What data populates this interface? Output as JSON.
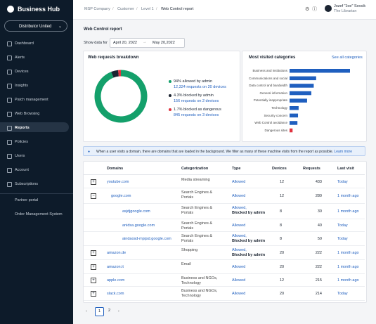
{
  "sidebar": {
    "logo": "Business Hub",
    "account": "Distributor United",
    "menu": [
      "Dashboard",
      "Alerts",
      "Devices",
      "Insights",
      "Patch management",
      "Web Browsing",
      "Reports",
      "Policies",
      "Users",
      "Account",
      "Subscriptions"
    ],
    "links": [
      "Partner portal",
      "Order Management System"
    ]
  },
  "header": {
    "breadcrumb": [
      "MSP Company",
      "Customer",
      "Level 1",
      "Web Control report"
    ],
    "user_name": "Jozef \"Joe\" Sovcik",
    "user_role": "The Librarian"
  },
  "page": {
    "title": "Web Control report",
    "show_data_for": "Show data for",
    "date_from": "April 20, 2022",
    "date_to": "May 20,2022"
  },
  "breakdown": {
    "title": "Web requests breakdown",
    "items": [
      {
        "value": 94,
        "label": "94% allowed by admin",
        "detail": "12,324 requests on 20 devices",
        "color": "#14a06b"
      },
      {
        "value": 4.3,
        "label": "4.3% blocked by admin",
        "detail": "156 requests on 2 devices",
        "color": "#1b2431"
      },
      {
        "value": 1.7,
        "label": "1.7% blocked as dangerous",
        "detail": "845 requests on 3 devices",
        "color": "#e0333f"
      }
    ]
  },
  "categories": {
    "title": "Most visited categories",
    "link": "See all categories",
    "items": [
      {
        "name": "Business and institutions",
        "value": 100,
        "color": "#1f5fbf"
      },
      {
        "name": "Communications and social",
        "value": 44,
        "color": "#1f5fbf"
      },
      {
        "name": "Data control and bandwidth",
        "value": 40,
        "color": "#1f5fbf"
      },
      {
        "name": "General information",
        "value": 36,
        "color": "#1f5fbf"
      },
      {
        "name": "Potentially inappropriate",
        "value": 29,
        "color": "#1f5fbf"
      },
      {
        "name": "Technology",
        "value": 15,
        "color": "#1f5fbf"
      },
      {
        "name": "Security concern",
        "value": 14,
        "color": "#1f5fbf"
      },
      {
        "name": "Web Control avoidance",
        "value": 13,
        "color": "#1f5fbf"
      },
      {
        "name": "Dangerous sites",
        "value": 5,
        "color": "#e0333f"
      }
    ]
  },
  "info": {
    "text": "When a user visits a domain, there are domains that are loaded in the background. We filter as many of these machine visits from the report as possible.",
    "link": "Learn more"
  },
  "table": {
    "columns": [
      "Domains",
      "Categorization",
      "Type",
      "Devices",
      "Requests",
      "Last visit"
    ],
    "rows": [
      [
        "youtube.com",
        "Media streaming",
        [
          "Allowed"
        ],
        "12",
        "433",
        "Today"
      ],
      [
        "google.com",
        "Search Engines & Portals",
        [
          "Allowed"
        ],
        "12",
        "280",
        "1 month ago"
      ],
      [
        "asjdjgoogle.com",
        "Search Engines & Portals",
        [
          "Allowed,",
          "Blocked by admin"
        ],
        "8",
        "30",
        "1 month ago"
      ],
      [
        "anidsa.google.com",
        "Search Engines & Portals",
        [
          "Allowed"
        ],
        "8",
        "40",
        "Today"
      ],
      [
        "aindaosd-mjsjsd.google.com",
        "Search Engines & Portals",
        [
          "Allowed,",
          "Blocked by admin"
        ],
        "8",
        "50",
        "Today"
      ],
      [
        "amazon.de",
        "Shopping",
        [
          "Allowed,",
          "Blocked by admin"
        ],
        "20",
        "222",
        "1 month ago"
      ],
      [
        "amazon.it",
        "Email",
        [
          "Allowed"
        ],
        "20",
        "222",
        "1 month ago"
      ],
      [
        "apple.com",
        "Business and NGOs, Technology",
        [
          "Allowed"
        ],
        "12",
        "215",
        "1 month ago"
      ],
      [
        "slack.com",
        "Business and NGOs, Technology",
        [
          "Allowed"
        ],
        "20",
        "214",
        "Today"
      ]
    ]
  },
  "pagination": [
    "1",
    "2"
  ]
}
